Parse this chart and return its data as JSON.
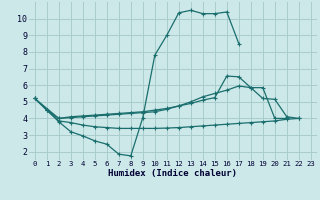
{
  "background_color": "#cce8e8",
  "grid_color": "#aacccc",
  "line_color": "#1a6e6e",
  "xlabel": "Humidex (Indice chaleur)",
  "xlim": [
    -0.5,
    23.5
  ],
  "ylim": [
    1.5,
    11.0
  ],
  "xticks": [
    0,
    1,
    2,
    3,
    4,
    5,
    6,
    7,
    8,
    9,
    10,
    11,
    12,
    13,
    14,
    15,
    16,
    17,
    18,
    19,
    20,
    21,
    22,
    23
  ],
  "yticks": [
    2,
    3,
    4,
    5,
    6,
    7,
    8,
    9,
    10
  ],
  "lines": [
    {
      "x": [
        0,
        1,
        2,
        3,
        4,
        5,
        6,
        7,
        8,
        9,
        10,
        11,
        12,
        13,
        14,
        15,
        16,
        17
      ],
      "y": [
        5.2,
        4.5,
        3.8,
        3.2,
        2.95,
        2.65,
        2.45,
        1.85,
        1.75,
        4.05,
        7.8,
        9.0,
        10.35,
        10.5,
        10.3,
        10.3,
        10.4,
        8.5
      ]
    },
    {
      "x": [
        0,
        1,
        2,
        3,
        4,
        5,
        6,
        7,
        8,
        9,
        10,
        11,
        12,
        13,
        14,
        15,
        16,
        17,
        18,
        19,
        20,
        21,
        22
      ],
      "y": [
        5.2,
        4.5,
        4.0,
        4.1,
        4.15,
        4.2,
        4.25,
        4.3,
        4.35,
        4.4,
        4.5,
        4.6,
        4.75,
        4.9,
        5.1,
        5.25,
        6.55,
        6.5,
        5.85,
        5.2,
        5.15,
        4.1,
        4.0
      ]
    },
    {
      "x": [
        0,
        2,
        3,
        4,
        5,
        6,
        7,
        8,
        9,
        10,
        11,
        12,
        13,
        14,
        15,
        16,
        17,
        18,
        19,
        20,
        21
      ],
      "y": [
        5.2,
        4.0,
        4.05,
        4.1,
        4.15,
        4.2,
        4.25,
        4.3,
        4.35,
        4.4,
        4.55,
        4.75,
        5.0,
        5.3,
        5.5,
        5.7,
        5.95,
        5.85,
        5.85,
        4.0,
        4.0
      ]
    },
    {
      "x": [
        1,
        2,
        3,
        4,
        5,
        6,
        7,
        8,
        9,
        10,
        11,
        12,
        13,
        14,
        15,
        16,
        17,
        18,
        19,
        20,
        21,
        22
      ],
      "y": [
        4.5,
        3.85,
        3.75,
        3.6,
        3.5,
        3.45,
        3.4,
        3.4,
        3.4,
        3.4,
        3.42,
        3.45,
        3.5,
        3.55,
        3.6,
        3.65,
        3.7,
        3.75,
        3.8,
        3.85,
        3.95,
        4.0
      ]
    }
  ]
}
